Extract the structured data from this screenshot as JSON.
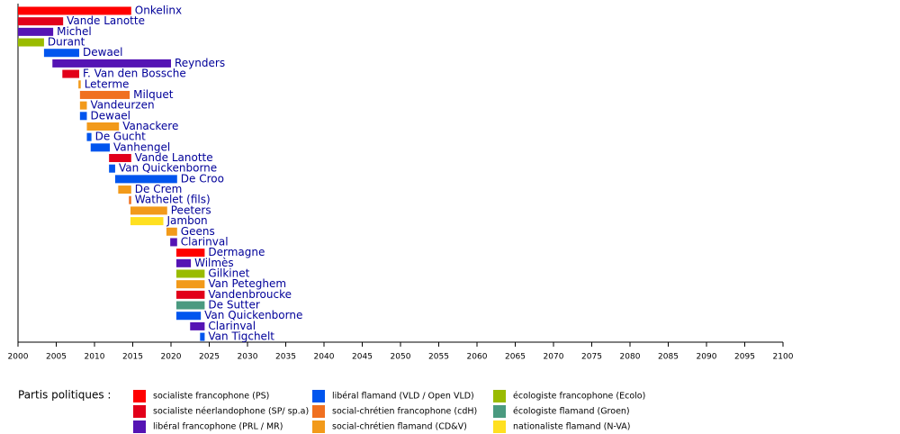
{
  "chart_data": {
    "type": "timeline",
    "xlim": [
      2000,
      2100
    ],
    "xticks": [
      2000,
      2005,
      2010,
      2015,
      2020,
      2025,
      2030,
      2035,
      2040,
      2045,
      2050,
      2055,
      2060,
      2065,
      2070,
      2075,
      2080,
      2085,
      2090,
      2095,
      2100
    ],
    "legend_title": "Partis politiques :",
    "parties": [
      {
        "name": "socialiste francophone (PS)",
        "color": "#ff0000"
      },
      {
        "name": "socialiste néerlandophone (SP/ sp.a)",
        "color": "#e2001a"
      },
      {
        "name": "libéral francophone (PRL / MR)",
        "color": "#5514b4"
      },
      {
        "name": "libéral flamand (VLD / Open VLD)",
        "color": "#0055ee"
      },
      {
        "name": "social-chrétien francophone (cdH)",
        "color": "#f07020"
      },
      {
        "name": "social-chrétien flamand (CD&V)",
        "color": "#f29a1a"
      },
      {
        "name": "écologiste francophone (Ecolo)",
        "color": "#99bb00"
      },
      {
        "name": "écologiste flamand (Groen)",
        "color": "#4a9a80"
      },
      {
        "name": "nationaliste flamand (N-VA)",
        "color": "#ffe020"
      }
    ],
    "bars": [
      {
        "label": "Onkelinx",
        "start": 2000,
        "end": 2014.8,
        "party": 0
      },
      {
        "label": "Vande Lanotte",
        "start": 2000,
        "end": 2005.9,
        "party": 1
      },
      {
        "label": "Michel",
        "start": 2000,
        "end": 2004.6,
        "party": 2
      },
      {
        "label": "Durant",
        "start": 2000,
        "end": 2003.4,
        "party": 6
      },
      {
        "label": "Dewael",
        "start": 2003.4,
        "end": 2008,
        "party": 3
      },
      {
        "label": "Reynders",
        "start": 2004.5,
        "end": 2020,
        "party": 2
      },
      {
        "label": "F. Van den Bossche",
        "start": 2005.8,
        "end": 2008,
        "party": 1
      },
      {
        "label": "Leterme",
        "start": 2007.9,
        "end": 2008.2,
        "party": 5
      },
      {
        "label": "Milquet",
        "start": 2008.1,
        "end": 2014.6,
        "party": 4
      },
      {
        "label": "Vandeurzen",
        "start": 2008.1,
        "end": 2009,
        "party": 5
      },
      {
        "label": "Dewael",
        "start": 2008.1,
        "end": 2009,
        "party": 3
      },
      {
        "label": "Vanackere",
        "start": 2009,
        "end": 2013.2,
        "party": 5
      },
      {
        "label": "De Gucht",
        "start": 2009,
        "end": 2009.6,
        "party": 3
      },
      {
        "label": "Vanhengel",
        "start": 2009.5,
        "end": 2012,
        "party": 3
      },
      {
        "label": "Vande Lanotte",
        "start": 2011.9,
        "end": 2014.8,
        "party": 1
      },
      {
        "label": "Van Quickenborne",
        "start": 2011.9,
        "end": 2012.7,
        "party": 3
      },
      {
        "label": "De Croo",
        "start": 2012.7,
        "end": 2020.8,
        "party": 3
      },
      {
        "label": "De Crem",
        "start": 2013.1,
        "end": 2014.8,
        "party": 5
      },
      {
        "label": "Wathelet (fils)",
        "start": 2014.5,
        "end": 2014.8,
        "party": 4
      },
      {
        "label": "Peeters",
        "start": 2014.7,
        "end": 2019.5,
        "party": 5
      },
      {
        "label": "Jambon",
        "start": 2014.7,
        "end": 2019,
        "party": 8
      },
      {
        "label": "Geens",
        "start": 2019.4,
        "end": 2020.8,
        "party": 5
      },
      {
        "label": "Clarinval",
        "start": 2019.9,
        "end": 2020.8,
        "party": 2
      },
      {
        "label": "Dermagne",
        "start": 2020.7,
        "end": 2024.4,
        "party": 0
      },
      {
        "label": "Wilmès",
        "start": 2020.7,
        "end": 2022.6,
        "party": 2
      },
      {
        "label": "Gilkinet",
        "start": 2020.7,
        "end": 2024.4,
        "party": 6
      },
      {
        "label": "Van Peteghem",
        "start": 2020.7,
        "end": 2024.4,
        "party": 5
      },
      {
        "label": "Vandenbroucke",
        "start": 2020.7,
        "end": 2024.4,
        "party": 1
      },
      {
        "label": "De Sutter",
        "start": 2020.7,
        "end": 2024.4,
        "party": 7
      },
      {
        "label": "Van Quickenborne",
        "start": 2020.7,
        "end": 2023.9,
        "party": 3
      },
      {
        "label": "Clarinval",
        "start": 2022.5,
        "end": 2024.4,
        "party": 2
      },
      {
        "label": "Van Tigchelt",
        "start": 2023.8,
        "end": 2024.4,
        "party": 3
      }
    ]
  }
}
